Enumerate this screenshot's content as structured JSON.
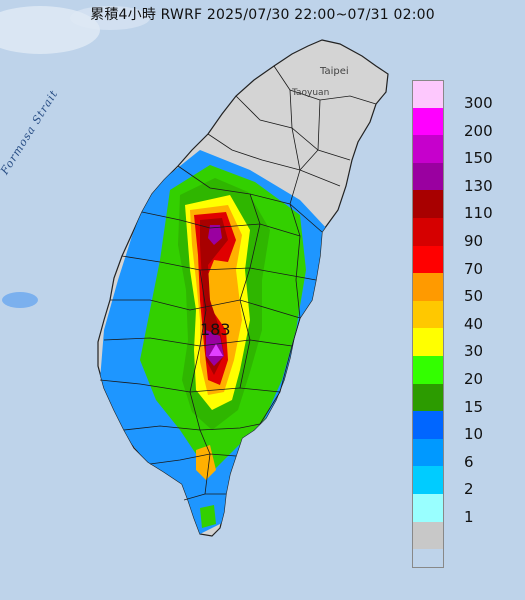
{
  "title": "累積4小時 RWRF 2025/07/30 22:00~07/31 02:00",
  "places": {
    "taipei": "Taipei",
    "taoyuan": "Taoyuan",
    "strait": "Formosa Strait"
  },
  "peak": {
    "value": "183",
    "marker_color": "#e040ff"
  },
  "legend": [
    {
      "label": "300",
      "color": "#fdc8fd"
    },
    {
      "label": "200",
      "color": "#ff00ff"
    },
    {
      "label": "150",
      "color": "#c600cc"
    },
    {
      "label": "130",
      "color": "#9a00a0"
    },
    {
      "label": "110",
      "color": "#a80000"
    },
    {
      "label": "90",
      "color": "#d60000"
    },
    {
      "label": "70",
      "color": "#ff0000"
    },
    {
      "label": "50",
      "color": "#ff9a00"
    },
    {
      "label": "40",
      "color": "#ffc800"
    },
    {
      "label": "30",
      "color": "#ffff00"
    },
    {
      "label": "20",
      "color": "#33ff00"
    },
    {
      "label": "15",
      "color": "#2c9b00"
    },
    {
      "label": "10",
      "color": "#0066ff"
    },
    {
      "label": "6",
      "color": "#0099ff"
    },
    {
      "label": "2",
      "color": "#00ccff"
    },
    {
      "label": "1",
      "color": "#99ffff"
    },
    {
      "label": "",
      "color": "#c8c8c8"
    }
  ],
  "colors": {
    "sea": "#b9cfe8",
    "land": "#d2d2d2",
    "border": "#1a1a1a"
  }
}
